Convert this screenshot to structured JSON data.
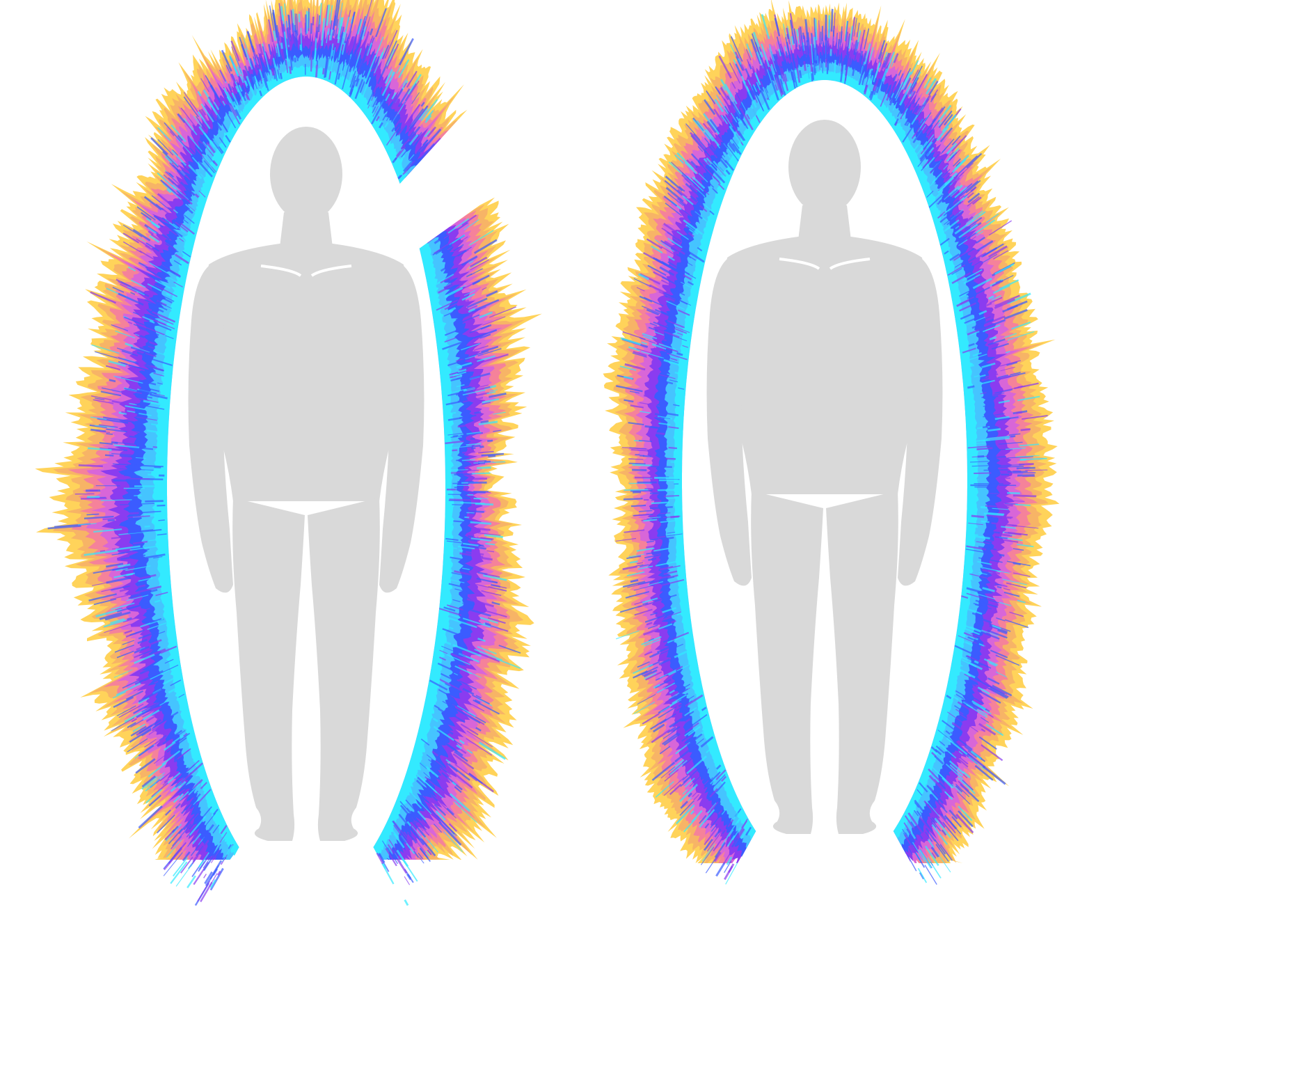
{
  "figures": [
    {
      "id": "left-panel",
      "description_visible": false,
      "aura_style": "jagged-uneven",
      "has_gap_at_left_lower_side": true
    },
    {
      "id": "right-panel",
      "description_visible": false,
      "aura_style": "dense-even",
      "has_gap_at_left_lower_side": false
    }
  ],
  "colors": {
    "background": "#ffffff",
    "silhouette": "#d9d9d9",
    "aura_inner": "#33eaff",
    "aura_mid_light": "#45c4ff",
    "aura_mid": "#3b5cff",
    "aura_violet": "#8a3cf0",
    "aura_magenta": "#d866d8",
    "aura_pink": "#f5829a",
    "aura_orange": "#f7b466",
    "aura_outer": "#ffd35a"
  }
}
